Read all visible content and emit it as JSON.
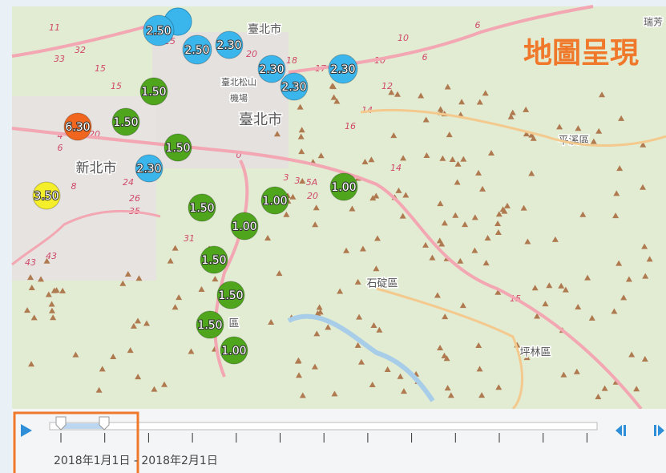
{
  "map": {
    "title": "地圖呈現",
    "places": [
      "臺北市",
      "臺北市",
      "新北市",
      "平溪區",
      "石碇區",
      "坪林區",
      "臺北松山",
      "機場",
      "瑞芳",
      "區"
    ],
    "markers": [
      {
        "label": "2.50",
        "color": "#3bb6ec"
      },
      {
        "label": "2.50",
        "color": "#3bb6ec"
      },
      {
        "label": "2.30",
        "color": "#3bb6ec"
      },
      {
        "label": "2.30",
        "color": "#3bb6ec"
      },
      {
        "label": "2.30",
        "color": "#3bb6ec"
      },
      {
        "label": "2.30",
        "color": "#3bb6ec"
      },
      {
        "label": "1.50",
        "color": "#4fa61c"
      },
      {
        "label": "1.50",
        "color": "#4fa61c"
      },
      {
        "label": "6.30",
        "color": "#f0661f"
      },
      {
        "label": "1.50",
        "color": "#4fa61c"
      },
      {
        "label": "2.30",
        "color": "#3bb6ec"
      },
      {
        "label": "3.50",
        "color": "#f5ee2a"
      },
      {
        "label": "1.50",
        "color": "#4fa61c"
      },
      {
        "label": "1.00",
        "color": "#4fa61c"
      },
      {
        "label": "1.00",
        "color": "#4fa61c"
      },
      {
        "label": "1.00",
        "color": "#4fa61c"
      },
      {
        "label": "1.50",
        "color": "#4fa61c"
      },
      {
        "label": "1.50",
        "color": "#4fa61c"
      },
      {
        "label": "1.50",
        "color": "#4fa61c"
      },
      {
        "label": "1.00",
        "color": "#4fa61c"
      }
    ],
    "route_labels": [
      "11",
      "33",
      "32",
      "15",
      "15",
      "20",
      "24",
      "26",
      "35",
      "31",
      "43",
      "43",
      "8",
      "4",
      "6",
      "17",
      "12",
      "10",
      "10",
      "6",
      "6",
      "14",
      "16",
      "5A",
      "20",
      "3",
      "3",
      "0",
      "25",
      "18",
      "20",
      "14",
      "15"
    ]
  },
  "timeline": {
    "range_label": "2018年1月1日 - 2018年2月1日"
  }
}
